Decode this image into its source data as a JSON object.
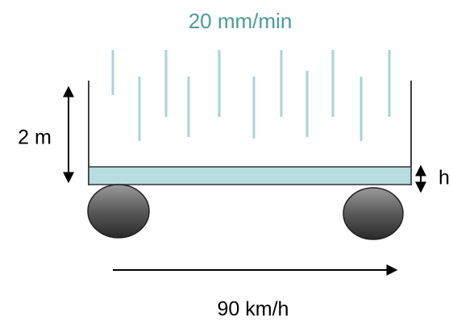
{
  "title": "20 mm/min",
  "height_label": "2 m",
  "depth_label": "h",
  "speed_label": "90 km/h"
}
